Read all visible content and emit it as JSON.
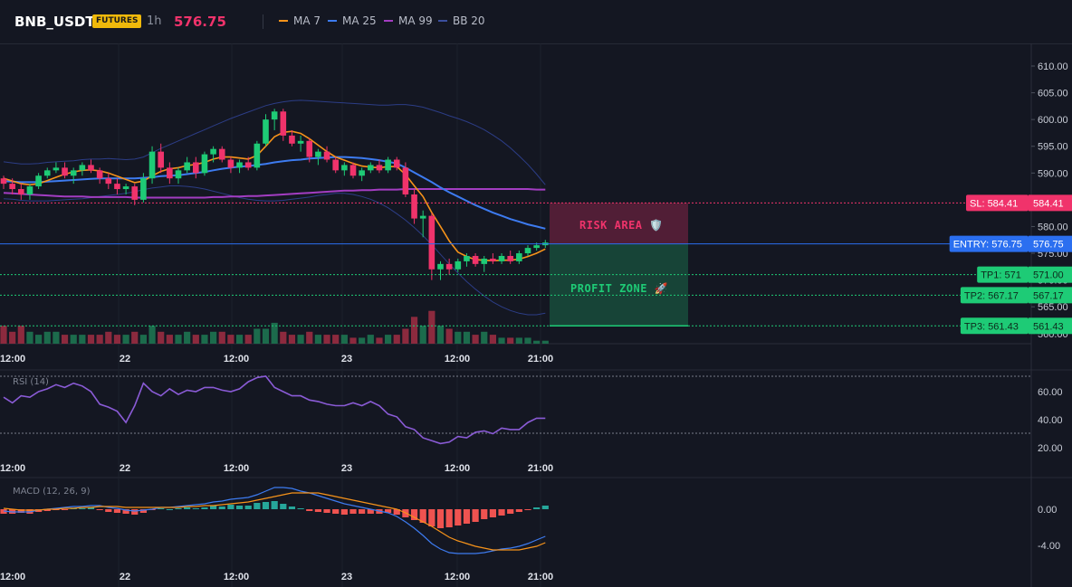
{
  "header": {
    "symbol": "BNB_USDT",
    "badge": "FUTURES",
    "timeframe": "1h",
    "price": "576.75",
    "legend": [
      {
        "label": "MA 7",
        "color": "#f7931a"
      },
      {
        "label": "MA 25",
        "color": "#3d7bf0"
      },
      {
        "label": "MA 99",
        "color": "#a33dc2"
      },
      {
        "label": "BB 20",
        "color": "#3b4f9e"
      }
    ]
  },
  "price_axis": {
    "ticks": [
      "610.00",
      "605.00",
      "600.00",
      "595.00",
      "590.00",
      "585.00",
      "580.00",
      "575.00",
      "570.00",
      "565.00",
      "560.00"
    ]
  },
  "x_axis": {
    "labels": [
      "12:00",
      "22",
      "12:00",
      "23",
      "12:00",
      "21:00"
    ]
  },
  "levels": {
    "sl": {
      "tag": "SL: 584.41",
      "axis": "584.41",
      "value": 584.41,
      "color": "#f0336b"
    },
    "entry": {
      "tag": "ENTRY: 576.75",
      "axis": "576.75",
      "value": 576.75,
      "color": "#2b6ff0"
    },
    "tp": [
      {
        "tag": "TP1: 571",
        "axis": "571.00",
        "value": 571.0,
        "color": "#1ecb76"
      },
      {
        "tag": "TP2: 567.17",
        "axis": "567.17",
        "value": 567.17,
        "color": "#1ecb76"
      },
      {
        "tag": "TP3: 561.43",
        "axis": "561.43",
        "value": 561.43,
        "color": "#1ecb76"
      }
    ]
  },
  "zones": {
    "risk": "RISK AREA 🛡️",
    "profit": "PROFIT ZONE 🚀"
  },
  "rsi": {
    "label": "RSI (14)",
    "ticks": [
      "60.00",
      "40.00",
      "20.00"
    ]
  },
  "macd": {
    "label": "MACD (12, 26, 9)",
    "ticks": [
      "0.00",
      "-4.00"
    ]
  },
  "colors": {
    "up": "#1ecb76",
    "down": "#f0336b",
    "bg": "#141722"
  },
  "chart_data": {
    "type": "candlestick",
    "series_names": [
      "MA 7",
      "MA 25",
      "MA 99",
      "BB 20"
    ],
    "ylim": [
      559,
      612
    ],
    "candles": [
      [
        589,
        589.5,
        587,
        588
      ],
      [
        588,
        589,
        586,
        587
      ],
      [
        587,
        588,
        585,
        586
      ],
      [
        586,
        588,
        585,
        587.5
      ],
      [
        587.5,
        590,
        587,
        589.5
      ],
      [
        589.5,
        591,
        589,
        590.5
      ],
      [
        590.5,
        592,
        590,
        591
      ],
      [
        591,
        592,
        589,
        589.5
      ],
      [
        589.5,
        591,
        588,
        590.5
      ],
      [
        590.5,
        592,
        589.5,
        591.5
      ],
      [
        591.5,
        592.5,
        590,
        590.5
      ],
      [
        590.5,
        591,
        588,
        589
      ],
      [
        589,
        590,
        587,
        588
      ],
      [
        588,
        589,
        586,
        587
      ],
      [
        587,
        588,
        586,
        587.5
      ],
      [
        587.5,
        588,
        584,
        585
      ],
      [
        585,
        590,
        584.5,
        589
      ],
      [
        589,
        595,
        588,
        594
      ],
      [
        594,
        595.5,
        590,
        591
      ],
      [
        591,
        592,
        588,
        589
      ],
      [
        589,
        591,
        588,
        590.5
      ],
      [
        590.5,
        593,
        590,
        592
      ],
      [
        592,
        593,
        589,
        590
      ],
      [
        590,
        594,
        589.5,
        593.5
      ],
      [
        593.5,
        595,
        592,
        594.5
      ],
      [
        594.5,
        595,
        592,
        592.5
      ],
      [
        592.5,
        593,
        590,
        591
      ],
      [
        591,
        592.5,
        590,
        592
      ],
      [
        592,
        593,
        590.5,
        591
      ],
      [
        591,
        596,
        590.5,
        595.5
      ],
      [
        595.5,
        601,
        595,
        600
      ],
      [
        600,
        602,
        598,
        601.5
      ],
      [
        601.5,
        602,
        596,
        597
      ],
      [
        597,
        598,
        595,
        595.5
      ],
      [
        595.5,
        597,
        594,
        596
      ],
      [
        596,
        596.5,
        592,
        593
      ],
      [
        593,
        594.5,
        591.5,
        594
      ],
      [
        594,
        595,
        592,
        592.5
      ],
      [
        592.5,
        593,
        590,
        590.5
      ],
      [
        590.5,
        592,
        589.5,
        591.5
      ],
      [
        591.5,
        592,
        589,
        589.5
      ],
      [
        589.5,
        591,
        588.5,
        590.5
      ],
      [
        590.5,
        592,
        590,
        591.5
      ],
      [
        591.5,
        592.5,
        590,
        590.5
      ],
      [
        590.5,
        593,
        590,
        592.5
      ],
      [
        592.5,
        593,
        590.5,
        591
      ],
      [
        591,
        592,
        585.5,
        586
      ],
      [
        586,
        587,
        580.5,
        581.5
      ],
      [
        581.5,
        583,
        578,
        582
      ],
      [
        582,
        582.5,
        570,
        572
      ],
      [
        572,
        573.5,
        570,
        573
      ],
      [
        573,
        574,
        571,
        572
      ],
      [
        572,
        574,
        571.5,
        573.5
      ],
      [
        573.5,
        575,
        572.5,
        574.5
      ],
      [
        574.5,
        575,
        572.5,
        573
      ],
      [
        573,
        574.5,
        571.5,
        574
      ],
      [
        574,
        575,
        573,
        573.5
      ],
      [
        573.5,
        575,
        573,
        574.5
      ],
      [
        574.5,
        575.5,
        573,
        573.5
      ],
      [
        573.5,
        575.5,
        573,
        575
      ],
      [
        575,
        576.5,
        574.5,
        576
      ],
      [
        576,
        577,
        575.5,
        576.5
      ],
      [
        576.5,
        577.5,
        576,
        577
      ]
    ],
    "volume": [
      6,
      4,
      6,
      4,
      3,
      4,
      4,
      3,
      3,
      3,
      3,
      3,
      4,
      3,
      3,
      4,
      3,
      6,
      4,
      3,
      3,
      4,
      3,
      3,
      4,
      4,
      3,
      3,
      3,
      5,
      5,
      7,
      4,
      3,
      3,
      4,
      3,
      3,
      3,
      3,
      2,
      2,
      3,
      2,
      3,
      3,
      5,
      9,
      6,
      11,
      6,
      5,
      4,
      4,
      3,
      4,
      3,
      2,
      2,
      2,
      2,
      1,
      1
    ],
    "ma7": [
      589,
      588.5,
      588,
      587.8,
      588,
      588.6,
      589.2,
      589.8,
      590.2,
      590.5,
      590.6,
      590.4,
      590,
      589.4,
      588.8,
      588.2,
      588.5,
      589.5,
      590.3,
      590.8,
      591,
      591.4,
      591.6,
      592,
      592.6,
      593,
      593,
      592.8,
      592.6,
      593.3,
      595,
      596.8,
      597.6,
      597.8,
      597.4,
      596.4,
      595.2,
      594,
      593,
      592.4,
      591.8,
      591.3,
      591.1,
      591,
      591.2,
      591.2,
      589.7,
      587.6,
      585.6,
      582.6,
      580,
      577.3,
      575.2,
      574.4,
      573.8,
      573.7,
      573.6,
      573.7,
      573.7,
      573.9,
      574.4,
      575,
      575.8
    ],
    "ma25": [
      588.5,
      588.4,
      588.3,
      588.3,
      588.3,
      588.4,
      588.5,
      588.6,
      588.7,
      588.8,
      588.9,
      589,
      589,
      589,
      589,
      589,
      589.1,
      589.2,
      589.4,
      589.5,
      589.6,
      589.8,
      590,
      590.2,
      590.5,
      590.8,
      591,
      591.2,
      591.3,
      591.5,
      591.7,
      592,
      592.2,
      592.4,
      592.5,
      592.7,
      592.8,
      592.9,
      593,
      593,
      592.9,
      592.8,
      592.6,
      592.4,
      592.1,
      591.8,
      591,
      590.1,
      589.2,
      588.3,
      587.3,
      586.4,
      585.6,
      584.8,
      584,
      583.3,
      582.6,
      582,
      581.4,
      580.9,
      580.4,
      580,
      579.6
    ],
    "ma99": [
      586.3,
      586.2,
      586.1,
      586,
      585.9,
      585.8,
      585.7,
      585.6,
      585.6,
      585.6,
      585.5,
      585.5,
      585.5,
      585.5,
      585.5,
      585.4,
      585.4,
      585.4,
      585.4,
      585.4,
      585.4,
      585.4,
      585.4,
      585.4,
      585.5,
      585.5,
      585.6,
      585.6,
      585.7,
      585.7,
      585.8,
      585.9,
      586,
      586.1,
      586.2,
      586.3,
      586.4,
      586.5,
      586.6,
      586.7,
      586.7,
      586.8,
      586.8,
      586.9,
      586.9,
      586.9,
      587,
      587,
      587,
      587,
      587,
      587,
      587,
      587,
      587,
      587,
      587,
      587,
      587,
      587,
      587,
      586.9,
      586.9
    ],
    "bb_upper": [
      592.1,
      591.9,
      591.7,
      591.7,
      591.8,
      592,
      592.1,
      592.2,
      592.3,
      592.5,
      592.6,
      592.6,
      592.7,
      592.6,
      592.5,
      592.6,
      593,
      593.8,
      594.6,
      595.3,
      596,
      596.7,
      597.4,
      598.1,
      598.8,
      599.5,
      600.2,
      600.8,
      601.4,
      602,
      602.6,
      603,
      603.3,
      603.5,
      603.6,
      603.5,
      603.4,
      603.3,
      603.2,
      603.1,
      603,
      602.9,
      602.8,
      602.7,
      602.7,
      602.8,
      602.8,
      602.6,
      602.3,
      601.8,
      601.3,
      600.7,
      600.2,
      599.6,
      598.9,
      598.1,
      597.1,
      596,
      594.7,
      593.2,
      591.6,
      589.8,
      587.8
    ],
    "bb_lower": [
      585.2,
      585.1,
      584.9,
      584.8,
      584.8,
      584.8,
      584.9,
      585,
      585.1,
      585.2,
      585.4,
      585.6,
      585.8,
      586,
      586.2,
      586.5,
      586.9,
      587.2,
      587.4,
      587.6,
      587.6,
      587.5,
      587.3,
      587,
      586.6,
      586.2,
      585.8,
      585.4,
      585.1,
      584.9,
      584.8,
      584.8,
      584.9,
      585.1,
      585.3,
      585.5,
      585.8,
      586,
      586.2,
      586.2,
      586,
      585.6,
      585.1,
      584.4,
      583.5,
      582.4,
      581.2,
      579.8,
      578.3,
      576.6,
      574.8,
      573,
      571.3,
      569.7,
      568.3,
      567,
      565.9,
      565,
      564.3,
      563.8,
      563.5,
      563.5,
      563.8
    ],
    "rsi": [
      56,
      52,
      57,
      56,
      60,
      62,
      65,
      63,
      66,
      64,
      60,
      51,
      49,
      46,
      38,
      50,
      66,
      60,
      57,
      62,
      58,
      61,
      60,
      63,
      63,
      61,
      60,
      62,
      67,
      70,
      71,
      63,
      60,
      57,
      57,
      54,
      53,
      51,
      50,
      50,
      52,
      50,
      53,
      50,
      44,
      42,
      35,
      33,
      27,
      25,
      23,
      24,
      28,
      27,
      31,
      32,
      30,
      34,
      33,
      33,
      38,
      41,
      41
    ],
    "macd_hist": [
      -0.5,
      -0.5,
      -0.4,
      -0.5,
      -0.3,
      -0.2,
      -0.1,
      -0.1,
      0.1,
      0.1,
      0.2,
      -0.1,
      -0.3,
      -0.4,
      -0.5,
      -0.6,
      -0.4,
      -0.1,
      0.1,
      0,
      0.1,
      0.2,
      0.1,
      0.2,
      0.4,
      0.3,
      0.5,
      0.4,
      0.4,
      0.7,
      0.8,
      0.9,
      0.6,
      0.3,
      0.1,
      -0.2,
      -0.3,
      -0.4,
      -0.5,
      -0.6,
      -0.5,
      -0.5,
      -0.5,
      -0.5,
      -0.4,
      -0.6,
      -0.9,
      -1.2,
      -1.5,
      -1.9,
      -2.1,
      -2.0,
      -1.8,
      -1.6,
      -1.4,
      -1.1,
      -0.9,
      -0.7,
      -0.5,
      -0.3,
      -0.1,
      0.2,
      0.4
    ],
    "macd_line": [
      -0.2,
      -0.3,
      -0.3,
      -0.3,
      -0.1,
      0,
      0.1,
      0.2,
      0.3,
      0.3,
      0.4,
      0.4,
      0.2,
      0.1,
      -0.1,
      -0.2,
      -0.1,
      0,
      0.2,
      0.2,
      0.3,
      0.4,
      0.5,
      0.6,
      0.8,
      0.9,
      1.1,
      1.2,
      1.3,
      1.6,
      2,
      2.4,
      2.4,
      2.3,
      2,
      1.8,
      1.5,
      1.2,
      0.9,
      0.6,
      0.4,
      0.2,
      0,
      -0.2,
      -0.4,
      -0.8,
      -1.4,
      -2.1,
      -2.9,
      -3.8,
      -4.4,
      -4.8,
      -4.9,
      -4.9,
      -4.9,
      -4.8,
      -4.6,
      -4.4,
      -4.3,
      -4.1,
      -3.8,
      -3.4,
      -3.0
    ],
    "macd_signal": [
      0.1,
      0,
      -0.1,
      -0.1,
      -0.1,
      0,
      0,
      0.1,
      0.1,
      0.2,
      0.2,
      0.3,
      0.3,
      0.3,
      0.2,
      0.2,
      0.2,
      0.2,
      0.2,
      0.2,
      0.2,
      0.3,
      0.3,
      0.4,
      0.4,
      0.5,
      0.6,
      0.7,
      0.8,
      1,
      1.2,
      1.4,
      1.6,
      1.8,
      1.8,
      1.8,
      1.8,
      1.6,
      1.4,
      1.2,
      1,
      0.8,
      0.6,
      0.4,
      0.2,
      0,
      -0.4,
      -0.9,
      -1.4,
      -1.9,
      -2.5,
      -3.1,
      -3.5,
      -3.8,
      -4.1,
      -4.3,
      -4.5,
      -4.5,
      -4.5,
      -4.5,
      -4.3,
      -4.1,
      -3.7
    ]
  }
}
